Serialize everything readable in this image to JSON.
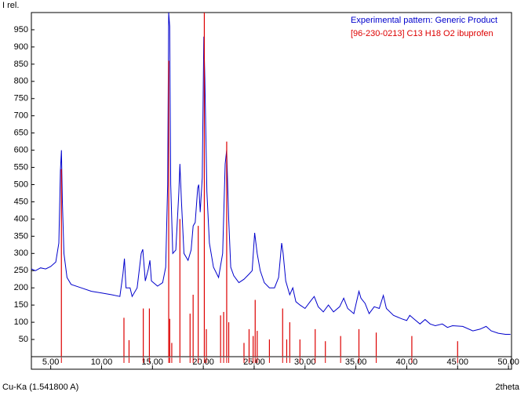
{
  "chart_data": {
    "type": "line",
    "y_axis_label": "I rel.",
    "x_axis_label": "2theta",
    "footer": "Cu-Ka (1.541800 A)",
    "xlim": [
      3.1,
      50.3
    ],
    "ylim": [
      0,
      1000
    ],
    "xticks": [
      {
        "value": 5,
        "label": "5.00"
      },
      {
        "value": 10,
        "label": "10.00"
      },
      {
        "value": 15,
        "label": "15.00"
      },
      {
        "value": 20,
        "label": "20.00"
      },
      {
        "value": 25,
        "label": "25.00"
      },
      {
        "value": 30,
        "label": "30.00"
      },
      {
        "value": 35,
        "label": "35.00"
      },
      {
        "value": 40,
        "label": "40.00"
      },
      {
        "value": 45,
        "label": "45.00"
      },
      {
        "value": 50,
        "label": "50.00"
      }
    ],
    "yticks": [
      50,
      100,
      150,
      200,
      250,
      300,
      350,
      400,
      450,
      500,
      550,
      600,
      650,
      700,
      750,
      800,
      850,
      900,
      950
    ],
    "series": [
      {
        "name": "Experimental pattern: Generic Product",
        "type": "line",
        "color": "#0000cc",
        "x": [
          3.1,
          3.5,
          4.0,
          4.5,
          5.0,
          5.5,
          5.8,
          5.95,
          6.05,
          6.15,
          6.3,
          6.6,
          7.0,
          8.0,
          9.0,
          10.0,
          11.0,
          11.8,
          12.1,
          12.25,
          12.4,
          12.8,
          13.0,
          13.5,
          13.9,
          14.05,
          14.3,
          14.6,
          14.75,
          14.9,
          15.5,
          16.0,
          16.3,
          16.5,
          16.6,
          16.7,
          16.8,
          17.0,
          17.3,
          17.6,
          17.7,
          17.85,
          18.1,
          18.5,
          18.8,
          19.0,
          19.2,
          19.45,
          19.55,
          19.7,
          19.9,
          20.05,
          20.15,
          20.35,
          20.6,
          21.0,
          21.5,
          21.9,
          22.15,
          22.3,
          22.5,
          22.7,
          23.0,
          23.5,
          24.0,
          24.5,
          24.8,
          25.05,
          25.3,
          25.6,
          26.0,
          26.5,
          27.0,
          27.4,
          27.7,
          27.85,
          28.1,
          28.5,
          28.8,
          29.1,
          29.5,
          30.0,
          30.5,
          30.9,
          31.3,
          31.8,
          32.3,
          32.8,
          33.4,
          33.8,
          34.2,
          34.8,
          35.3,
          35.5,
          35.9,
          36.3,
          36.8,
          37.3,
          37.7,
          38.0,
          38.7,
          39.5,
          40.0,
          40.3,
          40.7,
          41.3,
          41.8,
          42.3,
          42.8,
          43.5,
          44.0,
          44.5,
          45.5,
          46.5,
          47.2,
          47.8,
          48.3,
          49.0,
          49.7,
          50.2
        ],
        "values": [
          255,
          250,
          258,
          255,
          262,
          275,
          330,
          540,
          600,
          450,
          300,
          230,
          210,
          200,
          190,
          185,
          180,
          175,
          240,
          285,
          200,
          200,
          175,
          200,
          300,
          312,
          220,
          255,
          280,
          220,
          205,
          215,
          260,
          500,
          1000,
          960,
          500,
          300,
          310,
          480,
          560,
          450,
          300,
          280,
          310,
          380,
          390,
          490,
          500,
          420,
          520,
          930,
          810,
          480,
          330,
          260,
          230,
          300,
          560,
          600,
          400,
          260,
          235,
          215,
          225,
          240,
          250,
          360,
          300,
          250,
          215,
          200,
          200,
          230,
          330,
          300,
          220,
          180,
          200,
          160,
          150,
          140,
          160,
          175,
          145,
          130,
          150,
          130,
          145,
          170,
          140,
          125,
          190,
          170,
          155,
          125,
          145,
          140,
          178,
          140,
          120,
          110,
          105,
          120,
          110,
          95,
          108,
          95,
          90,
          95,
          85,
          90,
          88,
          75,
          80,
          88,
          75,
          68,
          65,
          65
        ]
      },
      {
        "name": "[96-230-0213] C13 H18 O2 ibuprofen",
        "type": "stick",
        "color": "#dd0000",
        "x": [
          6.05,
          12.2,
          12.7,
          14.1,
          14.7,
          16.6,
          16.7,
          16.9,
          17.7,
          18.7,
          19.0,
          19.5,
          20.1,
          20.3,
          21.7,
          22.0,
          22.3,
          22.5,
          24.0,
          24.5,
          24.9,
          25.1,
          25.3,
          26.5,
          27.8,
          28.2,
          28.5,
          29.5,
          31.0,
          32.0,
          33.5,
          35.3,
          37.0,
          40.5,
          45.0
        ],
        "values": [
          545,
          113,
          48,
          140,
          140,
          860,
          110,
          40,
          400,
          125,
          180,
          380,
          1000,
          80,
          120,
          130,
          625,
          100,
          40,
          80,
          60,
          165,
          75,
          50,
          140,
          50,
          100,
          50,
          80,
          45,
          60,
          80,
          70,
          60,
          45
        ]
      }
    ]
  }
}
